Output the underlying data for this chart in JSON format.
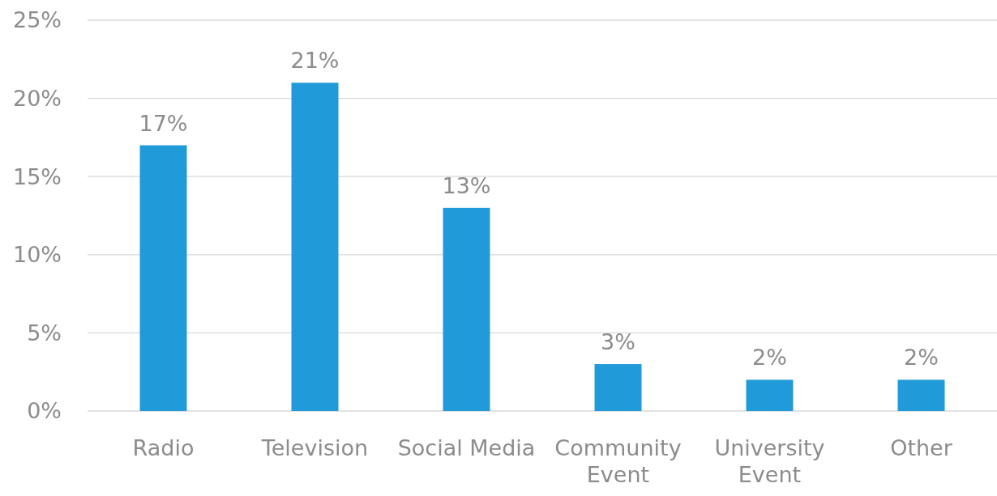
{
  "chart_data": {
    "type": "bar",
    "categories": [
      "Radio",
      "Television",
      "Social Media",
      "Community Event",
      "University Event",
      "Other"
    ],
    "values": [
      17,
      21,
      13,
      3,
      2,
      2
    ],
    "value_labels": [
      "17%",
      "21%",
      "13%",
      "3%",
      "2%",
      "2%"
    ],
    "color": "#209ad8",
    "ylim": [
      0,
      25
    ],
    "yticks": [
      {
        "value": 0,
        "label": "0%"
      },
      {
        "value": 5,
        "label": "5%"
      },
      {
        "value": 10,
        "label": "10%"
      },
      {
        "value": 15,
        "label": "15%"
      },
      {
        "value": 20,
        "label": "20%"
      },
      {
        "value": 25,
        "label": "25%"
      }
    ],
    "grid": "y"
  }
}
